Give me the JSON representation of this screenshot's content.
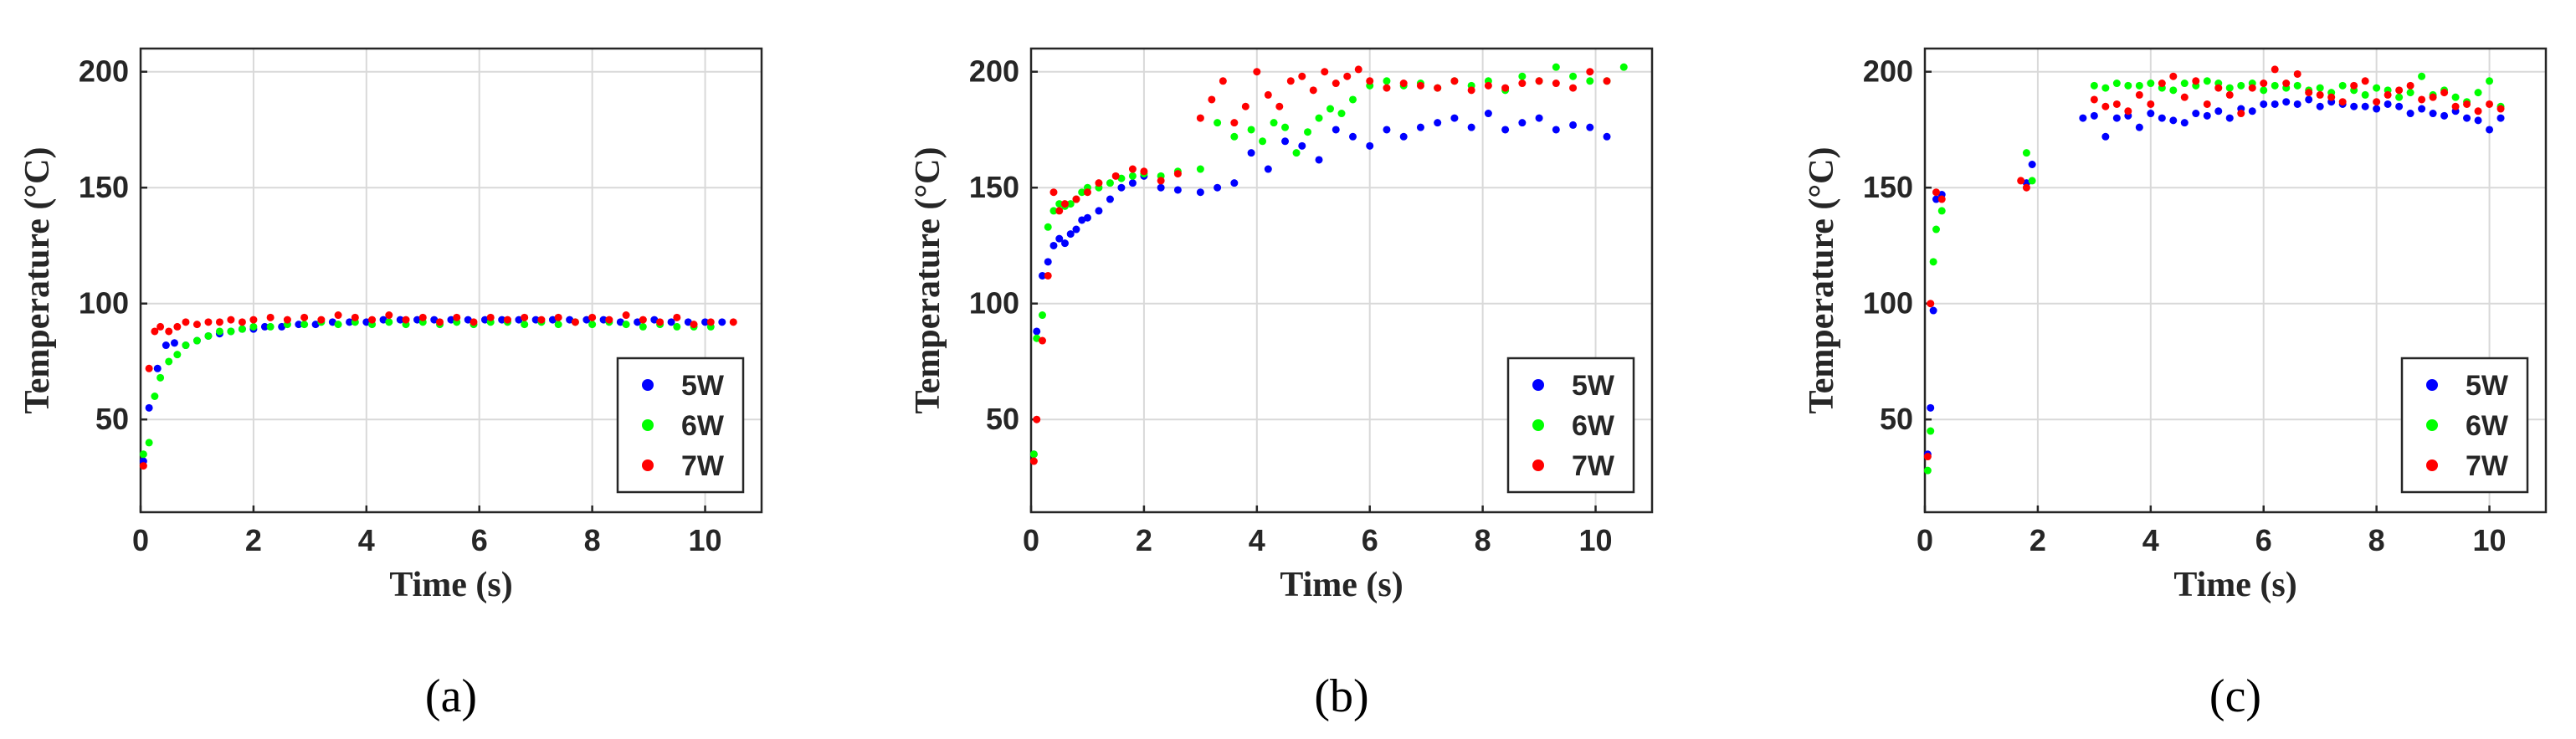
{
  "colors": {
    "5W": "#0000ff",
    "6W": "#00ff00",
    "7W": "#ff0000"
  },
  "chart_data": [
    {
      "type": "scatter",
      "panel_label": "(a)",
      "xlabel": "Time (s)",
      "ylabel": "Temperature (°C)",
      "xlim": [
        0,
        11
      ],
      "ylim": [
        10,
        210
      ],
      "xticks": [
        0,
        2,
        4,
        6,
        8,
        10
      ],
      "yticks": [
        50,
        100,
        150,
        200
      ],
      "grid": true,
      "legend_position": "bottom-right",
      "series": [
        {
          "name": "5W",
          "x": [
            0.05,
            0.15,
            0.3,
            0.45,
            0.6,
            0.8,
            1.0,
            1.2,
            1.4,
            1.6,
            1.8,
            2.0,
            2.2,
            2.5,
            2.8,
            3.1,
            3.4,
            3.7,
            4.0,
            4.3,
            4.6,
            4.9,
            5.2,
            5.5,
            5.8,
            6.1,
            6.4,
            6.7,
            7.0,
            7.3,
            7.6,
            7.9,
            8.2,
            8.5,
            8.8,
            9.1,
            9.4,
            9.7,
            10.0,
            10.3
          ],
          "y": [
            32,
            55,
            72,
            82,
            83,
            82,
            84,
            86,
            87,
            88,
            89,
            89,
            90,
            90,
            91,
            91,
            92,
            92,
            92,
            93,
            93,
            93,
            93,
            93,
            93,
            93,
            93,
            93,
            93,
            93,
            93,
            93,
            93,
            92,
            92,
            93,
            92,
            92,
            92,
            92
          ]
        },
        {
          "name": "6W",
          "x": [
            0.05,
            0.15,
            0.25,
            0.35,
            0.5,
            0.65,
            0.8,
            1.0,
            1.2,
            1.4,
            1.6,
            1.8,
            2.0,
            2.3,
            2.6,
            2.9,
            3.2,
            3.5,
            3.8,
            4.1,
            4.4,
            4.7,
            5.0,
            5.3,
            5.6,
            5.9,
            6.2,
            6.5,
            6.8,
            7.1,
            7.4,
            7.7,
            8.0,
            8.3,
            8.6,
            8.9,
            9.2,
            9.5,
            9.8,
            10.1
          ],
          "y": [
            35,
            40,
            60,
            68,
            75,
            78,
            82,
            84,
            86,
            88,
            88,
            89,
            90,
            90,
            91,
            91,
            92,
            91,
            92,
            91,
            92,
            91,
            92,
            91,
            92,
            91,
            92,
            92,
            91,
            92,
            91,
            92,
            91,
            92,
            91,
            90,
            91,
            90,
            90,
            90
          ]
        },
        {
          "name": "7W",
          "x": [
            0.05,
            0.15,
            0.25,
            0.35,
            0.5,
            0.65,
            0.8,
            1.0,
            1.2,
            1.4,
            1.6,
            1.8,
            2.0,
            2.3,
            2.6,
            2.9,
            3.2,
            3.5,
            3.8,
            4.1,
            4.4,
            4.7,
            5.0,
            5.3,
            5.6,
            5.9,
            6.2,
            6.5,
            6.8,
            7.1,
            7.4,
            7.7,
            8.0,
            8.3,
            8.6,
            8.9,
            9.2,
            9.5,
            9.8,
            10.1,
            10.5
          ],
          "y": [
            30,
            72,
            88,
            90,
            88,
            90,
            92,
            91,
            92,
            92,
            93,
            92,
            93,
            94,
            93,
            94,
            93,
            95,
            94,
            93,
            95,
            93,
            94,
            92,
            94,
            92,
            94,
            93,
            94,
            93,
            94,
            92,
            94,
            93,
            95,
            93,
            92,
            94,
            91,
            92,
            92
          ]
        }
      ]
    },
    {
      "type": "scatter",
      "panel_label": "(b)",
      "xlabel": "Time (s)",
      "ylabel": "Temperature (°C)",
      "xlim": [
        0,
        11
      ],
      "ylim": [
        10,
        210
      ],
      "xticks": [
        0,
        2,
        4,
        6,
        8,
        10
      ],
      "yticks": [
        50,
        100,
        150,
        200
      ],
      "grid": true,
      "legend_position": "bottom-right",
      "series": [
        {
          "name": "5W",
          "x": [
            0.05,
            0.1,
            0.2,
            0.3,
            0.4,
            0.5,
            0.6,
            0.7,
            0.8,
            0.9,
            1.0,
            1.2,
            1.4,
            1.6,
            1.8,
            2.0,
            2.3,
            2.6,
            3.0,
            3.3,
            3.6,
            3.9,
            4.2,
            4.5,
            4.8,
            5.1,
            5.4,
            5.7,
            6.0,
            6.3,
            6.6,
            6.9,
            7.2,
            7.5,
            7.8,
            8.1,
            8.4,
            8.7,
            9.0,
            9.3,
            9.6,
            9.9,
            10.2
          ],
          "y": [
            35,
            88,
            112,
            118,
            125,
            128,
            126,
            130,
            132,
            136,
            137,
            140,
            145,
            150,
            152,
            155,
            150,
            149,
            148,
            150,
            152,
            165,
            158,
            170,
            168,
            162,
            175,
            172,
            168,
            175,
            172,
            176,
            178,
            180,
            176,
            182,
            175,
            178,
            180,
            175,
            177,
            176,
            172
          ]
        },
        {
          "name": "6W",
          "x": [
            0.05,
            0.1,
            0.2,
            0.3,
            0.4,
            0.5,
            0.6,
            0.7,
            0.8,
            0.9,
            1.0,
            1.2,
            1.4,
            1.6,
            1.8,
            2.0,
            2.3,
            2.6,
            3.0,
            3.3,
            3.6,
            3.9,
            4.1,
            4.3,
            4.5,
            4.7,
            4.9,
            5.1,
            5.3,
            5.5,
            5.7,
            6.0,
            6.3,
            6.6,
            6.9,
            7.2,
            7.5,
            7.8,
            8.1,
            8.4,
            8.7,
            9.0,
            9.3,
            9.6,
            9.9,
            10.2,
            10.5
          ],
          "y": [
            35,
            85,
            95,
            133,
            140,
            143,
            142,
            143,
            145,
            148,
            150,
            150,
            152,
            154,
            155,
            156,
            155,
            157,
            158,
            178,
            172,
            175,
            170,
            178,
            176,
            165,
            174,
            180,
            184,
            182,
            188,
            194,
            196,
            194,
            195,
            193,
            196,
            194,
            196,
            192,
            198,
            196,
            202,
            198,
            196,
            196,
            202
          ]
        },
        {
          "name": "7W",
          "x": [
            0.05,
            0.1,
            0.2,
            0.3,
            0.4,
            0.5,
            0.6,
            0.8,
            1.0,
            1.2,
            1.5,
            1.8,
            2.0,
            2.3,
            2.6,
            3.0,
            3.2,
            3.4,
            3.6,
            3.8,
            4.0,
            4.2,
            4.4,
            4.6,
            4.8,
            5.0,
            5.2,
            5.4,
            5.6,
            5.8,
            6.0,
            6.3,
            6.6,
            6.9,
            7.2,
            7.5,
            7.8,
            8.1,
            8.4,
            8.7,
            9.0,
            9.3,
            9.6,
            9.9,
            10.2
          ],
          "y": [
            32,
            50,
            84,
            112,
            148,
            140,
            143,
            145,
            148,
            152,
            155,
            158,
            157,
            153,
            156,
            180,
            188,
            196,
            178,
            185,
            200,
            190,
            185,
            196,
            198,
            192,
            200,
            195,
            198,
            201,
            196,
            193,
            195,
            194,
            193,
            196,
            192,
            194,
            193,
            195,
            196,
            195,
            193,
            200,
            196
          ]
        }
      ]
    },
    {
      "type": "scatter",
      "panel_label": "(c)",
      "xlabel": "Time (s)",
      "ylabel": "Temperature (°C)",
      "xlim": [
        0,
        11
      ],
      "ylim": [
        10,
        210
      ],
      "xticks": [
        0,
        2,
        4,
        6,
        8,
        10
      ],
      "yticks": [
        50,
        100,
        150,
        200
      ],
      "grid": true,
      "legend_position": "bottom-right",
      "series": [
        {
          "name": "5W",
          "x": [
            0.05,
            0.1,
            0.15,
            0.2,
            0.3,
            1.8,
            1.9,
            2.8,
            3.0,
            3.2,
            3.4,
            3.6,
            3.8,
            4.0,
            4.2,
            4.4,
            4.6,
            4.8,
            5.0,
            5.2,
            5.4,
            5.6,
            5.8,
            6.0,
            6.2,
            6.4,
            6.6,
            6.8,
            7.0,
            7.2,
            7.4,
            7.6,
            7.8,
            8.0,
            8.2,
            8.4,
            8.6,
            8.8,
            9.0,
            9.2,
            9.4,
            9.6,
            9.8,
            10.0,
            10.2
          ],
          "y": [
            35,
            55,
            97,
            145,
            147,
            152,
            160,
            180,
            181,
            172,
            180,
            181,
            176,
            182,
            180,
            179,
            178,
            182,
            181,
            183,
            180,
            184,
            183,
            186,
            186,
            187,
            186,
            188,
            185,
            187,
            186,
            185,
            185,
            184,
            186,
            185,
            182,
            184,
            182,
            181,
            183,
            180,
            179,
            175,
            180
          ]
        },
        {
          "name": "6W",
          "x": [
            0.05,
            0.1,
            0.15,
            0.2,
            0.3,
            1.8,
            1.9,
            3.0,
            3.2,
            3.4,
            3.6,
            3.8,
            4.0,
            4.2,
            4.4,
            4.6,
            4.8,
            5.0,
            5.2,
            5.4,
            5.6,
            5.8,
            6.0,
            6.2,
            6.4,
            6.6,
            6.8,
            7.0,
            7.2,
            7.4,
            7.6,
            7.8,
            8.0,
            8.2,
            8.4,
            8.6,
            8.8,
            9.0,
            9.2,
            9.4,
            9.6,
            9.8,
            10.0,
            10.2
          ],
          "y": [
            28,
            45,
            118,
            132,
            140,
            165,
            153,
            194,
            193,
            195,
            194,
            194,
            195,
            193,
            192,
            195,
            194,
            196,
            195,
            193,
            194,
            195,
            192,
            194,
            193,
            194,
            192,
            193,
            191,
            194,
            192,
            190,
            193,
            192,
            189,
            191,
            198,
            190,
            192,
            189,
            187,
            191,
            196,
            185
          ]
        },
        {
          "name": "7W",
          "x": [
            0.05,
            0.1,
            0.2,
            0.3,
            1.7,
            1.8,
            3.0,
            3.2,
            3.4,
            3.6,
            3.8,
            4.0,
            4.2,
            4.4,
            4.6,
            4.8,
            5.0,
            5.2,
            5.4,
            5.6,
            5.8,
            6.0,
            6.2,
            6.4,
            6.6,
            6.8,
            7.0,
            7.2,
            7.4,
            7.6,
            7.8,
            8.0,
            8.2,
            8.4,
            8.6,
            8.8,
            9.0,
            9.2,
            9.4,
            9.6,
            9.8,
            10.0,
            10.2
          ],
          "y": [
            34,
            100,
            148,
            145,
            153,
            150,
            188,
            185,
            186,
            183,
            190,
            186,
            195,
            198,
            189,
            196,
            186,
            193,
            190,
            182,
            193,
            195,
            201,
            195,
            199,
            191,
            190,
            189,
            187,
            194,
            196,
            187,
            190,
            192,
            194,
            188,
            189,
            191,
            185,
            186,
            183,
            186,
            184
          ]
        }
      ]
    }
  ]
}
